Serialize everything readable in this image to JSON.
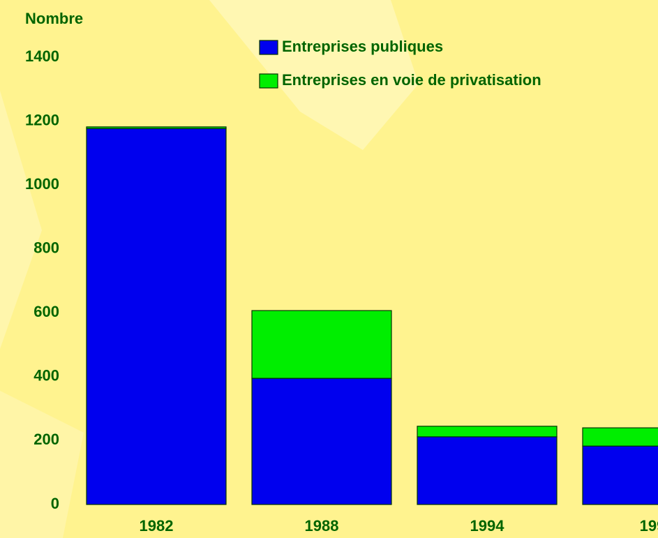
{
  "chart_data": {
    "type": "bar",
    "stacked": true,
    "y_axis_label": "Nombre",
    "categories": [
      "1982",
      "1988",
      "1994",
      "199"
    ],
    "series": [
      {
        "name": "Entreprises publiques",
        "color": "#0000ee",
        "values": [
          1177,
          395,
          212,
          183
        ]
      },
      {
        "name": "Entreprises en voie de privatisation",
        "color": "#00ee00",
        "values": [
          5,
          212,
          33,
          57
        ]
      }
    ],
    "ylim": [
      0,
      1400
    ],
    "yticks": [
      0,
      200,
      400,
      600,
      800,
      1000,
      1200,
      1400
    ]
  }
}
